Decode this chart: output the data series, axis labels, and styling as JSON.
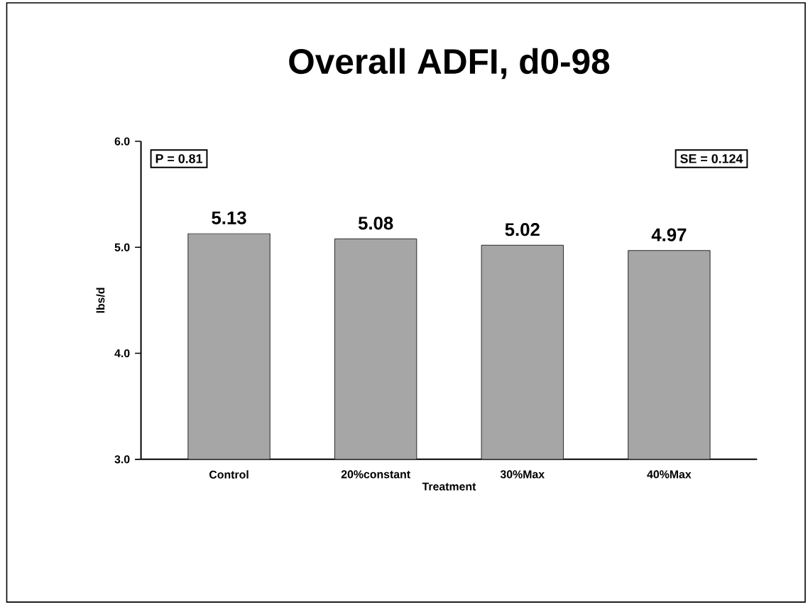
{
  "chart_data": {
    "type": "bar",
    "title": "Overall ADFI, d0-98",
    "xlabel": "Treatment",
    "ylabel": "lbs/d",
    "categories": [
      "Control",
      "20%constant",
      "30%Max",
      "40%Max"
    ],
    "values": [
      5.13,
      5.08,
      5.02,
      4.97
    ],
    "color": "#a6a6a6",
    "ylim": [
      3,
      6
    ],
    "yticks": [
      {
        "value": 3,
        "label": "3.0"
      },
      {
        "value": 4,
        "label": "4.0"
      },
      {
        "value": 5,
        "label": "5.0"
      },
      {
        "value": 6,
        "label": "6.0"
      }
    ],
    "data_labels": true,
    "grid": false,
    "annotations": [
      "P = 0.81",
      "SE = 0.124"
    ]
  }
}
